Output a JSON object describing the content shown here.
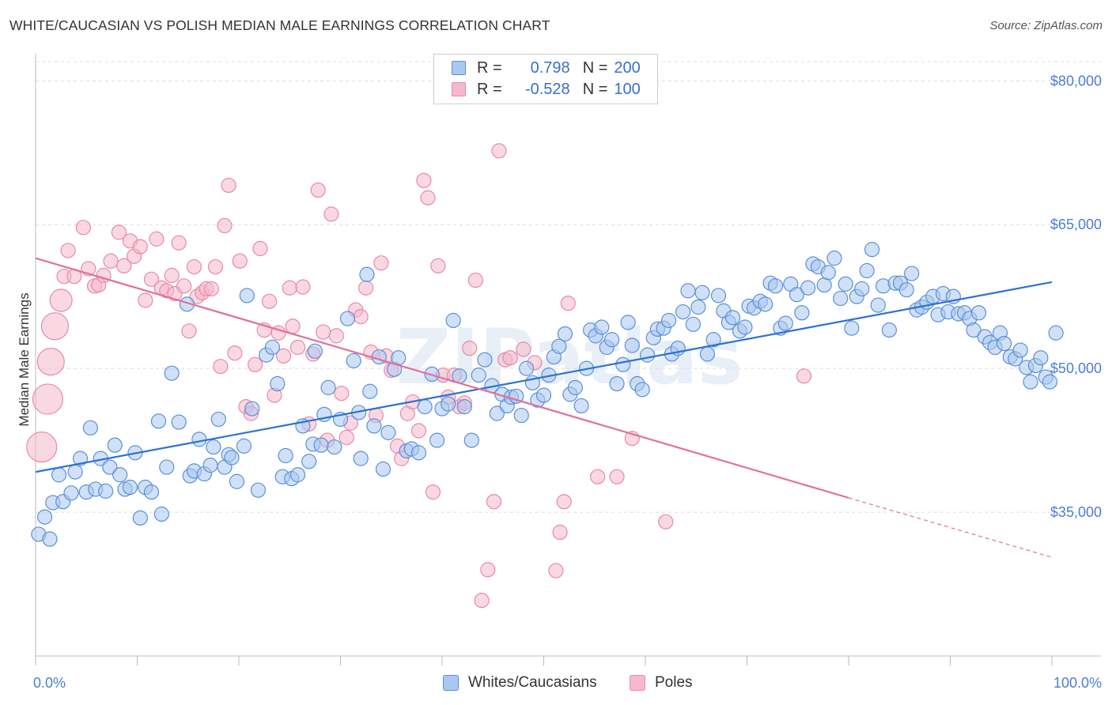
{
  "title": "WHITE/CAUCASIAN VS POLISH MEDIAN MALE EARNINGS CORRELATION CHART",
  "source": "Source: ZipAtlas.com",
  "watermark": "ZIPatlas",
  "colors": {
    "blue_fill": "#aac8f0",
    "blue_stroke": "#5b8fd9",
    "blue_line": "#2b72d3",
    "pink_fill": "#f6b8cb",
    "pink_stroke": "#e889a8",
    "pink_line": "#e0709a",
    "axis_text": "#4a7fd4",
    "grid": "#dddddd"
  },
  "legend": {
    "rows": [
      {
        "r_label": "R =",
        "r_value": "0.798",
        "n_label": "N =",
        "n_value": "200"
      },
      {
        "r_label": "R =",
        "r_value": "-0.528",
        "n_label": "N =",
        "n_value": "100"
      }
    ]
  },
  "bottom_legend": [
    {
      "label": "Whites/Caucasians"
    },
    {
      "label": "Poles"
    }
  ],
  "chart_data": {
    "type": "scatter",
    "xlabel": "",
    "ylabel": "Median Male Earnings",
    "xlim": [
      0,
      100
    ],
    "ylim": [
      20000,
      82000
    ],
    "x_tick_labels": [
      "0.0%",
      "100.0%"
    ],
    "y_ticks": [
      35000,
      50000,
      65000,
      80000
    ],
    "y_tick_labels": [
      "$35,000",
      "$50,000",
      "$65,000",
      "$80,000"
    ],
    "grid": true,
    "legend_position": "top-center",
    "series": [
      {
        "name": "Whites/Caucasians",
        "trend": {
          "x0": 0,
          "y0": 39200,
          "x1": 100,
          "y1": 59000
        },
        "points": [
          [
            0.3,
            32700
          ],
          [
            0.9,
            34500
          ],
          [
            1.4,
            32200
          ],
          [
            1.7,
            36000
          ],
          [
            2.3,
            38900
          ],
          [
            2.7,
            36100
          ],
          [
            3.5,
            37000
          ],
          [
            3.9,
            39200
          ],
          [
            4.4,
            40600
          ],
          [
            5,
            37100
          ],
          [
            5.4,
            43800
          ],
          [
            5.9,
            37400
          ],
          [
            6.4,
            40600
          ],
          [
            6.9,
            37200
          ],
          [
            7.3,
            39700
          ],
          [
            7.8,
            42000
          ],
          [
            8.3,
            38900
          ],
          [
            8.8,
            37400
          ],
          [
            9.3,
            37600
          ],
          [
            9.8,
            41200
          ],
          [
            10.3,
            34400
          ],
          [
            10.8,
            37600
          ],
          [
            11.4,
            37100
          ],
          [
            12.1,
            44500
          ],
          [
            12.4,
            34800
          ],
          [
            12.9,
            39700
          ],
          [
            13.4,
            49500
          ],
          [
            14.1,
            44400
          ],
          [
            14.9,
            56700
          ],
          [
            15.2,
            38800
          ],
          [
            15.6,
            39300
          ],
          [
            16.1,
            42600
          ],
          [
            16.6,
            39000
          ],
          [
            17.2,
            39900
          ],
          [
            17.5,
            41800
          ],
          [
            18,
            44700
          ],
          [
            18.6,
            39700
          ],
          [
            19,
            41000
          ],
          [
            19.3,
            40700
          ],
          [
            19.8,
            38200
          ],
          [
            20.5,
            41900
          ],
          [
            20.8,
            57600
          ],
          [
            21.3,
            45800
          ],
          [
            21.9,
            37300
          ],
          [
            22.7,
            51400
          ],
          [
            23.3,
            52200
          ],
          [
            23.8,
            48400
          ],
          [
            24.3,
            38700
          ],
          [
            24.6,
            40900
          ],
          [
            25.2,
            38500
          ],
          [
            25.8,
            38900
          ],
          [
            26.3,
            44000
          ],
          [
            26.9,
            40300
          ],
          [
            27.3,
            42100
          ],
          [
            27.5,
            51800
          ],
          [
            28.1,
            42000
          ],
          [
            28.4,
            45200
          ],
          [
            28.8,
            48000
          ],
          [
            29.4,
            41800
          ],
          [
            30,
            44700
          ],
          [
            30.7,
            55200
          ],
          [
            31.3,
            50800
          ],
          [
            31.8,
            45400
          ],
          [
            32,
            40600
          ],
          [
            32.6,
            59800
          ],
          [
            32.9,
            47600
          ],
          [
            33.3,
            44000
          ],
          [
            33.8,
            51200
          ],
          [
            34.2,
            39500
          ],
          [
            34.7,
            43300
          ],
          [
            35.3,
            49900
          ],
          [
            35.7,
            51100
          ],
          [
            36.5,
            41400
          ],
          [
            37,
            41600
          ],
          [
            37.7,
            41200
          ],
          [
            38.3,
            46000
          ],
          [
            39,
            49400
          ],
          [
            39.5,
            42500
          ],
          [
            40,
            45800
          ],
          [
            40.6,
            46300
          ],
          [
            41.1,
            55000
          ],
          [
            41.7,
            49200
          ],
          [
            42.2,
            46000
          ],
          [
            42.9,
            42500
          ],
          [
            43.6,
            49300
          ],
          [
            44.2,
            50900
          ],
          [
            44.9,
            48200
          ],
          [
            45.4,
            45300
          ],
          [
            45.9,
            47300
          ],
          [
            46.4,
            46100
          ],
          [
            46.8,
            47000
          ],
          [
            47.3,
            47100
          ],
          [
            47.8,
            45100
          ],
          [
            48.3,
            50000
          ],
          [
            48.9,
            48500
          ],
          [
            49.4,
            46700
          ],
          [
            50,
            47200
          ],
          [
            50.5,
            49300
          ],
          [
            51,
            51200
          ],
          [
            51.5,
            52300
          ],
          [
            52.1,
            53600
          ],
          [
            52.6,
            47300
          ],
          [
            53.1,
            48000
          ],
          [
            53.7,
            46100
          ],
          [
            54.2,
            50000
          ],
          [
            54.6,
            54000
          ],
          [
            55.1,
            53400
          ],
          [
            55.7,
            54300
          ],
          [
            56.2,
            52200
          ],
          [
            56.7,
            53000
          ],
          [
            57.2,
            48400
          ],
          [
            57.8,
            50400
          ],
          [
            58.3,
            54800
          ],
          [
            58.7,
            52400
          ],
          [
            59.2,
            48400
          ],
          [
            59.7,
            47800
          ],
          [
            60.2,
            51400
          ],
          [
            60.8,
            53200
          ],
          [
            61.2,
            54100
          ],
          [
            61.8,
            54200
          ],
          [
            62.3,
            55000
          ],
          [
            62.6,
            51500
          ],
          [
            63.2,
            52100
          ],
          [
            63.7,
            55900
          ],
          [
            64.2,
            58100
          ],
          [
            64.7,
            54600
          ],
          [
            65.2,
            56400
          ],
          [
            65.6,
            57900
          ],
          [
            66.1,
            51500
          ],
          [
            66.7,
            53000
          ],
          [
            67.2,
            57600
          ],
          [
            67.7,
            56000
          ],
          [
            68.2,
            54800
          ],
          [
            68.6,
            55300
          ],
          [
            69.3,
            53900
          ],
          [
            69.8,
            54300
          ],
          [
            70.2,
            56500
          ],
          [
            70.7,
            56300
          ],
          [
            71.3,
            57000
          ],
          [
            71.8,
            56700
          ],
          [
            72.3,
            58900
          ],
          [
            72.8,
            58600
          ],
          [
            73.3,
            54200
          ],
          [
            73.8,
            54700
          ],
          [
            74.3,
            58800
          ],
          [
            74.9,
            57700
          ],
          [
            75.4,
            55800
          ],
          [
            76,
            58400
          ],
          [
            76.5,
            60900
          ],
          [
            77,
            60600
          ],
          [
            77.6,
            58700
          ],
          [
            78,
            60000
          ],
          [
            78.6,
            61500
          ],
          [
            79.2,
            57300
          ],
          [
            79.7,
            58800
          ],
          [
            80.3,
            54200
          ],
          [
            80.8,
            57500
          ],
          [
            81.3,
            58300
          ],
          [
            81.8,
            60200
          ],
          [
            82.3,
            62400
          ],
          [
            82.9,
            56600
          ],
          [
            83.4,
            58600
          ],
          [
            84,
            54000
          ],
          [
            84.6,
            58900
          ],
          [
            85.1,
            58900
          ],
          [
            85.7,
            58200
          ],
          [
            86.2,
            59900
          ],
          [
            86.7,
            56100
          ],
          [
            87.2,
            56400
          ],
          [
            87.7,
            56900
          ],
          [
            88.3,
            57500
          ],
          [
            88.8,
            55600
          ],
          [
            89.3,
            57800
          ],
          [
            89.8,
            55900
          ],
          [
            90.3,
            57500
          ],
          [
            90.8,
            55700
          ],
          [
            91.4,
            55800
          ],
          [
            91.9,
            55200
          ],
          [
            92.3,
            54000
          ],
          [
            92.8,
            55800
          ],
          [
            93.4,
            53300
          ],
          [
            93.9,
            52700
          ],
          [
            94.4,
            52200
          ],
          [
            94.9,
            53700
          ],
          [
            95.3,
            52600
          ],
          [
            95.9,
            51200
          ],
          [
            96.4,
            51000
          ],
          [
            96.9,
            51900
          ],
          [
            97.5,
            50100
          ],
          [
            97.9,
            48600
          ],
          [
            98.4,
            50300
          ],
          [
            98.9,
            51100
          ],
          [
            99.4,
            49100
          ],
          [
            99.8,
            48600
          ],
          [
            100.4,
            53700
          ]
        ]
      },
      {
        "name": "Poles",
        "trend": {
          "x0": 0,
          "y0": 61500,
          "x1": 80,
          "y1": 36500
        },
        "trend_dashed_to": {
          "x": 100,
          "y": 30300
        },
        "points": [
          [
            0.6,
            41800,
            "xl"
          ],
          [
            1.2,
            46800,
            "xl"
          ],
          [
            1.5,
            50700,
            "l"
          ],
          [
            1.9,
            54400,
            "l"
          ],
          [
            2.5,
            57100,
            "m"
          ],
          [
            2.8,
            59600
          ],
          [
            3.2,
            62300
          ],
          [
            3.8,
            59600
          ],
          [
            4.7,
            64700
          ],
          [
            5.2,
            60400
          ],
          [
            5.8,
            58600
          ],
          [
            6.2,
            58700
          ],
          [
            6.7,
            59700
          ],
          [
            7.4,
            61200
          ],
          [
            8.2,
            64200
          ],
          [
            8.7,
            60700
          ],
          [
            9.3,
            63300
          ],
          [
            9.7,
            61700
          ],
          [
            10.3,
            62700
          ],
          [
            10.8,
            57100
          ],
          [
            11.4,
            59300
          ],
          [
            11.9,
            63500
          ],
          [
            12.4,
            58400
          ],
          [
            12.9,
            58100
          ],
          [
            13.4,
            59700
          ],
          [
            13.7,
            57800
          ],
          [
            14.1,
            63100
          ],
          [
            14.6,
            58600
          ],
          [
            15.1,
            53900
          ],
          [
            15.6,
            60600
          ],
          [
            15.9,
            57500
          ],
          [
            16.4,
            57900
          ],
          [
            16.8,
            58300
          ],
          [
            17.3,
            58300
          ],
          [
            17.7,
            60600
          ],
          [
            18.2,
            50200
          ],
          [
            18.6,
            64900
          ],
          [
            19,
            69100
          ],
          [
            19.6,
            51600
          ],
          [
            20.1,
            61200
          ],
          [
            20.7,
            46000
          ],
          [
            21.2,
            45300
          ],
          [
            21.6,
            50400
          ],
          [
            22.1,
            62500
          ],
          [
            22.5,
            54000
          ],
          [
            23,
            57000
          ],
          [
            23.5,
            47200
          ],
          [
            23.9,
            53700
          ],
          [
            24.4,
            51300
          ],
          [
            25,
            58400
          ],
          [
            25.3,
            54400
          ],
          [
            25.8,
            52200
          ],
          [
            26.3,
            58500
          ],
          [
            26.9,
            44200
          ],
          [
            27.3,
            51500
          ],
          [
            27.8,
            68600
          ],
          [
            28.3,
            53800
          ],
          [
            28.7,
            42500
          ],
          [
            29.1,
            66100
          ],
          [
            29.6,
            53400
          ],
          [
            30.1,
            47400
          ],
          [
            30.6,
            42800
          ],
          [
            31,
            44300
          ],
          [
            31.5,
            56100
          ],
          [
            32,
            55400
          ],
          [
            32.5,
            58400
          ],
          [
            33,
            51700
          ],
          [
            33.5,
            45100
          ],
          [
            34,
            61000
          ],
          [
            34.5,
            51300
          ],
          [
            35,
            49800
          ],
          [
            35.6,
            41900
          ],
          [
            36,
            40600
          ],
          [
            36.6,
            45300
          ],
          [
            37.1,
            46500
          ],
          [
            37.7,
            43500
          ],
          [
            38.2,
            69600
          ],
          [
            38.6,
            67800
          ],
          [
            39.1,
            37100
          ],
          [
            39.6,
            60700
          ],
          [
            40.1,
            49300
          ],
          [
            40.6,
            47000
          ],
          [
            41.2,
            49300
          ],
          [
            41.7,
            46000
          ],
          [
            42.2,
            46400
          ],
          [
            42.7,
            52100
          ],
          [
            43.3,
            59200
          ],
          [
            43.9,
            25800
          ],
          [
            44.5,
            29000
          ],
          [
            45.1,
            36100
          ],
          [
            45.6,
            72700
          ],
          [
            46.2,
            50900
          ],
          [
            46.7,
            51100
          ],
          [
            48,
            52000
          ],
          [
            49.1,
            50600
          ],
          [
            51.2,
            28900
          ],
          [
            51.6,
            32900
          ],
          [
            52,
            36100
          ],
          [
            52.4,
            56800
          ],
          [
            55.3,
            38700
          ],
          [
            57.2,
            38700
          ],
          [
            58.7,
            42700
          ],
          [
            62,
            34000
          ],
          [
            75.6,
            49200
          ]
        ]
      }
    ]
  }
}
